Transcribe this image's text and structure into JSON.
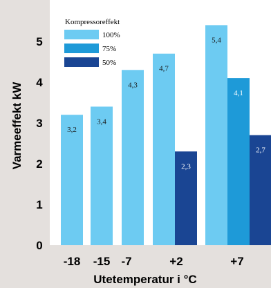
{
  "chart_data": {
    "type": "bar",
    "xlabel": "Utetemperatur i °C",
    "ylabel": "Varmeeffekt kW",
    "ylim": [
      0,
      5.75
    ],
    "yticks": [
      "0",
      "1",
      "2",
      "3",
      "4",
      "5"
    ],
    "grid": false,
    "legend": {
      "title": "Kompressoreffekt",
      "placement": "top-left",
      "entries": [
        {
          "label": "100%",
          "color": "#6dcbf2"
        },
        {
          "label": "75%",
          "color": "#1e9ad8"
        },
        {
          "label": "50%",
          "color": "#1a4593"
        }
      ]
    },
    "categories": [
      "-18",
      "-15",
      "-7",
      "+2",
      "+7"
    ],
    "series": [
      {
        "name": "100%",
        "color": "#6dcbf2",
        "values": [
          3.2,
          3.4,
          4.3,
          4.7,
          5.4
        ],
        "labels": [
          "3,2",
          "3,4",
          "4,3",
          "4,7",
          "5,4"
        ]
      },
      {
        "name": "75%",
        "color": "#1e9ad8",
        "values": [
          null,
          null,
          null,
          null,
          4.1
        ],
        "labels": [
          "",
          "",
          "",
          "",
          "4,1"
        ]
      },
      {
        "name": "50%",
        "color": "#1a4593",
        "values": [
          null,
          null,
          null,
          2.3,
          2.7
        ],
        "labels": [
          "",
          "",
          "",
          "2,3",
          "2,7"
        ]
      }
    ]
  }
}
